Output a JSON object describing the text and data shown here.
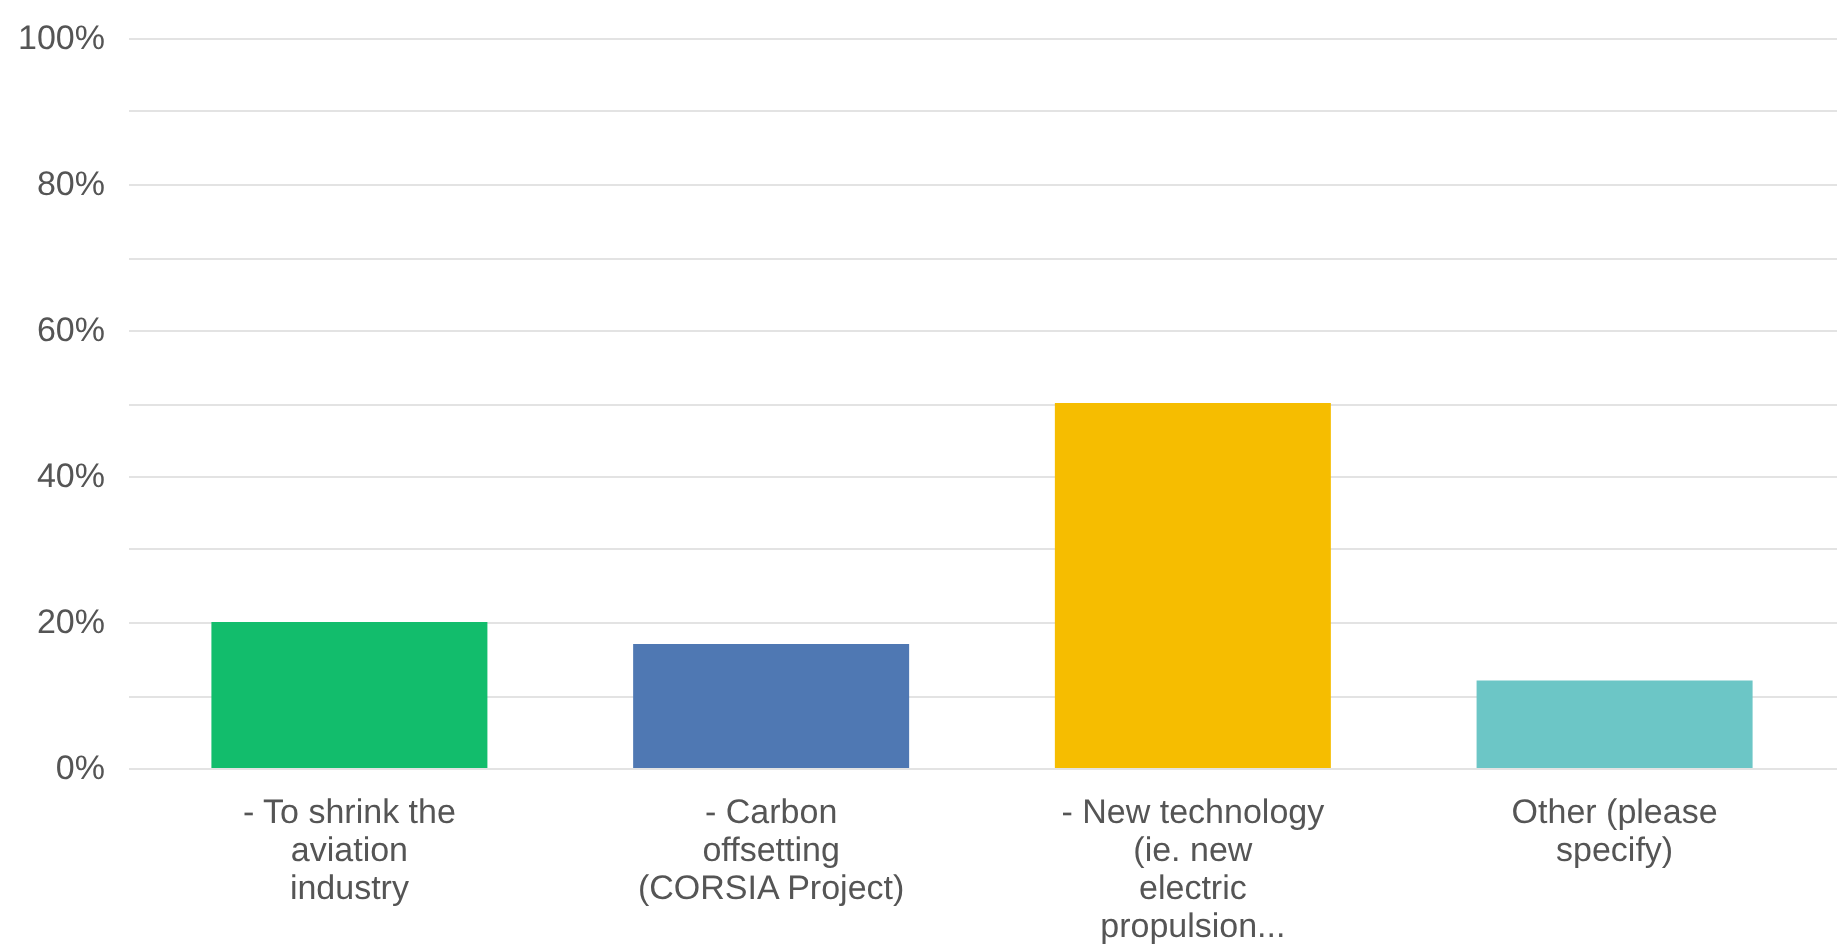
{
  "chart_data": {
    "type": "bar",
    "categories": [
      "- To shrink the aviation industry",
      "- Carbon offsetting (CORSIA Project)",
      "- New technology (ie. new electric propulsion...",
      "Other (please specify)"
    ],
    "values": [
      20,
      17,
      50,
      12
    ],
    "colors": [
      "#12bd6c",
      "#4f78b3",
      "#f6bd00",
      "#6cc6c6"
    ],
    "ylim": [
      0,
      100
    ],
    "yticks": [
      {
        "value": 0,
        "label": "0%"
      },
      {
        "value": 10,
        "label": null
      },
      {
        "value": 20,
        "label": "20%"
      },
      {
        "value": 30,
        "label": null
      },
      {
        "value": 40,
        "label": "40%"
      },
      {
        "value": 50,
        "label": null
      },
      {
        "value": 60,
        "label": "60%"
      },
      {
        "value": 70,
        "label": null
      },
      {
        "value": 80,
        "label": "80%"
      },
      {
        "value": 90,
        "label": null
      },
      {
        "value": 100,
        "label": "100%"
      }
    ],
    "grid": "y"
  }
}
